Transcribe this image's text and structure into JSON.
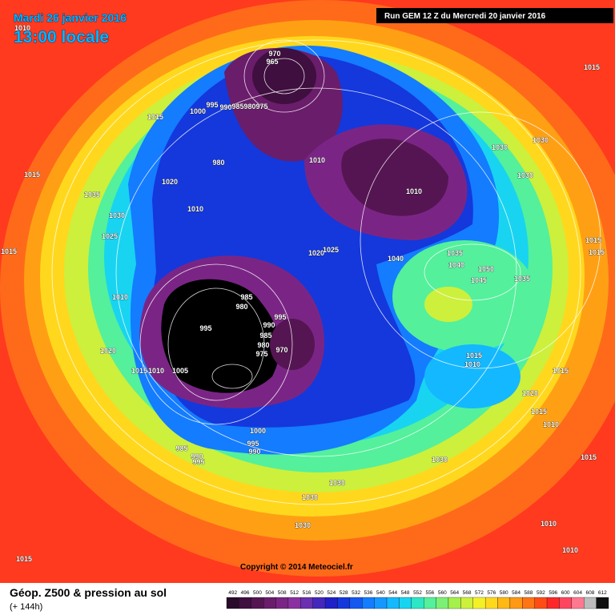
{
  "header": {
    "valid_date": "Mardi 26 janvier 2016",
    "local_time": "13:00 locale",
    "run": "Run GEM 12 Z du Mercredi 20 janvier 2016"
  },
  "copyright": "Copyright © 2014 Meteociel.fr",
  "footer": {
    "title": "Géop. Z500 & pression au sol",
    "lead": "(+ 144h)"
  },
  "legend": {
    "labels": [
      492,
      496,
      500,
      504,
      508,
      512,
      516,
      520,
      524,
      528,
      532,
      536,
      540,
      544,
      548,
      552,
      556,
      560,
      564,
      568,
      572,
      576,
      580,
      584,
      588,
      592,
      596,
      600,
      604,
      608,
      612
    ],
    "colors": [
      "#2a0a2a",
      "#3f0f3f",
      "#551552",
      "#6a1d6a",
      "#7a2585",
      "#8a30a0",
      "#6a30b0",
      "#4428bc",
      "#2020c8",
      "#1438dc",
      "#1458f0",
      "#147cff",
      "#1498ff",
      "#14b8ff",
      "#18d4f0",
      "#2ce6c4",
      "#54f09c",
      "#7cf074",
      "#a4f04c",
      "#ccf03c",
      "#f4f028",
      "#ffd81e",
      "#ffb814",
      "#ff9814",
      "#ff7414",
      "#ff4c14",
      "#ff2828",
      "#ff4660",
      "#ff7890",
      "#bcbcbc",
      "#101010"
    ]
  },
  "isobar_labels": [
    1010,
    970,
    965,
    995,
    990,
    985,
    980,
    975,
    1000,
    1015,
    980,
    1010,
    1010,
    1015,
    1030,
    1030,
    1030,
    1015,
    1020,
    1035,
    1030,
    1010,
    1025,
    1015,
    1020,
    1025,
    1040,
    1035,
    1040,
    1050,
    1045,
    1035,
    1015,
    1015,
    1010,
    985,
    980,
    995,
    990,
    995,
    985,
    980,
    975,
    970,
    1020,
    1015,
    1010,
    1005,
    1015,
    1010,
    1015,
    1020,
    1015,
    1010,
    1000,
    995,
    990,
    985,
    990,
    995,
    1030,
    1015,
    1030,
    1030,
    1030,
    1010,
    1010,
    1015
  ]
}
